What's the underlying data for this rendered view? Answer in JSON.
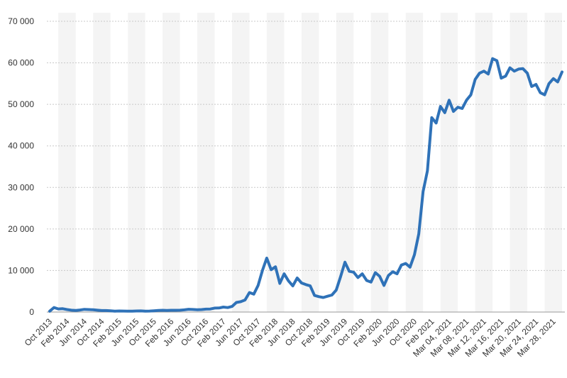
{
  "chart_data": {
    "type": "line",
    "categories": [
      "Oct 2013",
      null,
      null,
      null,
      "Feb 2014",
      null,
      null,
      null,
      "Jun 2014",
      null,
      null,
      null,
      "Oct 2014",
      null,
      null,
      null,
      "Feb 2015",
      null,
      null,
      null,
      "Jun 2015",
      null,
      null,
      null,
      "Oct 2015",
      null,
      null,
      null,
      "Feb 2016",
      null,
      null,
      null,
      "Jun 2016",
      null,
      null,
      null,
      "Oct 2016",
      null,
      null,
      null,
      "Feb 2017",
      null,
      null,
      null,
      "Jun 2017",
      null,
      null,
      null,
      "Oct 2017",
      null,
      null,
      null,
      "Feb 2018",
      null,
      null,
      null,
      "Jun 2018",
      null,
      null,
      null,
      "Oct 2018",
      null,
      null,
      null,
      "Feb 2019",
      null,
      null,
      null,
      "Jun 2019",
      null,
      null,
      null,
      "Oct 2019",
      null,
      null,
      null,
      "Feb 2020",
      null,
      null,
      null,
      "Jun 2020",
      null,
      null,
      null,
      "Oct 2020",
      null,
      null,
      null,
      "Feb 2021",
      null,
      null,
      null,
      "Mar 04, 2021",
      null,
      null,
      null,
      "Mar 08, 2021",
      null,
      null,
      null,
      "Mar 12, 2021",
      null,
      null,
      null,
      "Mar 16, 2021",
      null,
      null,
      null,
      "Mar 20, 2021",
      null,
      null,
      null,
      "Mar 24, 2021",
      null,
      null,
      null,
      "Mar 28, 2021",
      null,
      null
    ],
    "values": [
      200,
      1100,
      750,
      800,
      600,
      450,
      400,
      500,
      650,
      600,
      550,
      450,
      350,
      350,
      300,
      230,
      250,
      240,
      230,
      230,
      260,
      280,
      230,
      240,
      310,
      380,
      430,
      370,
      430,
      420,
      450,
      530,
      670,
      620,
      570,
      600,
      700,
      740,
      960,
      970,
      1190,
      1080,
      1350,
      2300,
      2500,
      2900,
      4700,
      4300,
      6400,
      10000,
      13000,
      10200,
      10900,
      6900,
      9200,
      7500,
      6300,
      8200,
      7000,
      6600,
      6300,
      4000,
      3700,
      3500,
      3800,
      4100,
      5300,
      8500,
      12000,
      9800,
      9600,
      8300,
      9200,
      7600,
      7200,
      9500,
      8600,
      6400,
      8800,
      9700,
      9200,
      11300,
      11700,
      10800,
      13800,
      18800,
      29000,
      34000,
      46800,
      45500,
      49500,
      48000,
      51000,
      48300,
      49300,
      49000,
      51000,
      52300,
      56000,
      57500,
      58000,
      57300,
      61000,
      60500,
      56300,
      56800,
      58800,
      58000,
      58500,
      58600,
      57500,
      54300,
      54800,
      52800,
      52300,
      55000,
      56200,
      55400,
      57800
    ],
    "color": "#2f72b8",
    "ylim": [
      0,
      70000
    ],
    "yticks": [
      0,
      {
        "value": 10000,
        "label": "10 000"
      },
      {
        "value": 20000,
        "label": "20 000"
      },
      {
        "value": 30000,
        "label": "30 000"
      },
      {
        "value": 40000,
        "label": "40 000"
      },
      {
        "value": 50000,
        "label": "50 000"
      },
      {
        "value": 60000,
        "label": "60 000"
      },
      {
        "value": 70000,
        "label": "70 000"
      }
    ],
    "grid": true
  }
}
